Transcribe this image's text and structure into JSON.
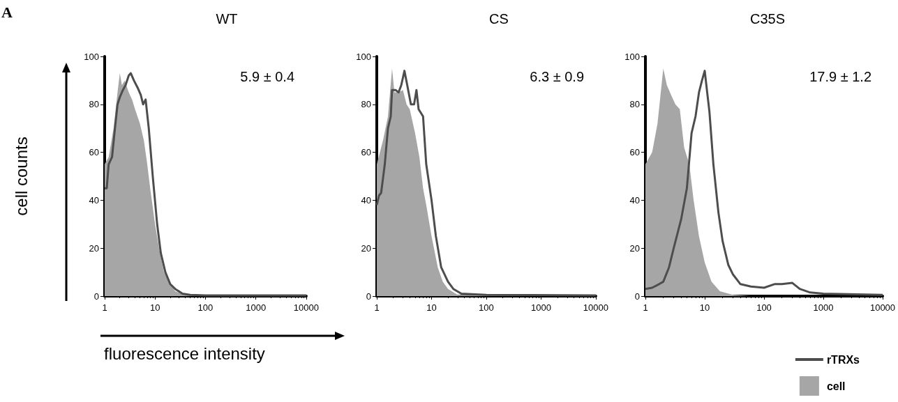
{
  "chart_data": [
    {
      "type": "line",
      "title": "WT",
      "xlabel": "fluorescence intensity",
      "ylabel": "cell counts",
      "annotations": [
        "A",
        "5.9 ± 0.4"
      ],
      "log": "x",
      "xlim": [
        1,
        10000
      ],
      "xticks": [
        1,
        10,
        100,
        1000,
        10000
      ],
      "ylim": [
        0,
        100
      ],
      "yticks": [
        0,
        20,
        40,
        60,
        80,
        100
      ],
      "legend": false,
      "series": [
        {
          "type": "area",
          "color": "#a6a6a6",
          "x": [
            1,
            1.2,
            1.5,
            1.8,
            2,
            2.2,
            2.5,
            3,
            3.5,
            4,
            5,
            6,
            7,
            8,
            10,
            12,
            15,
            20,
            25,
            40,
            100,
            10000
          ],
          "values": [
            55,
            58,
            70,
            85,
            93,
            88,
            90,
            85,
            82,
            78,
            72,
            65,
            55,
            45,
            30,
            20,
            10,
            5,
            2,
            0.5,
            0,
            0
          ]
        },
        {
          "type": "line",
          "color": "#4d4d4d",
          "x": [
            1,
            1.1,
            1.2,
            1.4,
            1.6,
            1.8,
            2,
            2.3,
            2.6,
            3,
            3.3,
            3.8,
            4.5,
            5.2,
            5.8,
            6.5,
            7.5,
            9,
            11,
            13,
            16,
            20,
            25,
            35,
            50,
            100,
            10000
          ],
          "values": [
            45,
            45,
            55,
            58,
            70,
            80,
            83,
            86,
            88,
            92,
            93,
            90,
            87,
            84,
            80,
            82,
            70,
            50,
            30,
            18,
            10,
            5,
            3,
            1,
            0.5,
            0.3,
            0.3
          ]
        }
      ]
    },
    {
      "type": "line",
      "title": "CS",
      "annotations": [
        "6.3 ± 0.9"
      ],
      "log": "x",
      "xlim": [
        1,
        10000
      ],
      "xticks": [
        1,
        10,
        100,
        1000,
        10000
      ],
      "ylim": [
        0,
        100
      ],
      "yticks": [
        0,
        20,
        40,
        60,
        80,
        100
      ],
      "legend": false,
      "series": [
        {
          "type": "area",
          "color": "#a6a6a6",
          "x": [
            1,
            1.3,
            1.6,
            1.9,
            2.1,
            2.5,
            3,
            3.5,
            4,
            5,
            6,
            7,
            8,
            10,
            13,
            16,
            20,
            30,
            10000
          ],
          "values": [
            55,
            65,
            75,
            95,
            85,
            85,
            86,
            80,
            78,
            68,
            58,
            45,
            38,
            25,
            12,
            6,
            3,
            0.5,
            0
          ]
        },
        {
          "type": "line",
          "color": "#4d4d4d",
          "x": [
            1,
            1.1,
            1.2,
            1.4,
            1.6,
            1.8,
            1.9,
            2.2,
            2.5,
            2.8,
            3.2,
            3.6,
            4.2,
            4.8,
            5.3,
            5.8,
            7,
            8,
            10,
            12,
            15,
            20,
            25,
            35,
            100,
            10000
          ],
          "values": [
            38,
            42,
            43,
            55,
            70,
            75,
            86,
            86,
            85,
            88,
            94,
            88,
            80,
            80,
            86,
            78,
            75,
            55,
            40,
            25,
            12,
            6,
            3,
            1,
            0.5,
            0.3
          ]
        }
      ]
    },
    {
      "type": "line",
      "title": "C35S",
      "annotations": [
        "17.9 ± 1.2"
      ],
      "log": "x",
      "xlim": [
        1,
        10000
      ],
      "xticks": [
        1,
        10,
        100,
        1000,
        10000
      ],
      "ylim": [
        0,
        100
      ],
      "yticks": [
        0,
        20,
        40,
        60,
        80,
        100
      ],
      "legend": "bottom right",
      "series": [
        {
          "name": "rTRXs",
          "type": "line",
          "color": "#4d4d4d",
          "x": [
            1,
            1.3,
            1.7,
            2,
            2.5,
            3,
            4,
            5,
            6,
            7,
            8,
            9,
            10,
            11,
            12,
            14,
            17,
            20,
            25,
            30,
            40,
            60,
            100,
            150,
            200,
            300,
            400,
            600,
            1000,
            10000
          ],
          "values": [
            3,
            3.5,
            5,
            6,
            12,
            20,
            32,
            45,
            68,
            75,
            85,
            90,
            94,
            85,
            77,
            55,
            35,
            23,
            13,
            9,
            5,
            4,
            3.5,
            5,
            5,
            5.5,
            3,
            1.5,
            1,
            0.5
          ]
        },
        {
          "name": "cell",
          "type": "area",
          "color": "#a6a6a6",
          "x": [
            1,
            1.3,
            1.6,
            2,
            2.3,
            2.7,
            3.2,
            3.8,
            4.5,
            5.5,
            6.5,
            8,
            10,
            13,
            18,
            30,
            60,
            10000
          ],
          "values": [
            55,
            60,
            72,
            95,
            88,
            84,
            80,
            78,
            62,
            55,
            40,
            25,
            14,
            6,
            2,
            0.5,
            0,
            0
          ]
        }
      ]
    }
  ]
}
